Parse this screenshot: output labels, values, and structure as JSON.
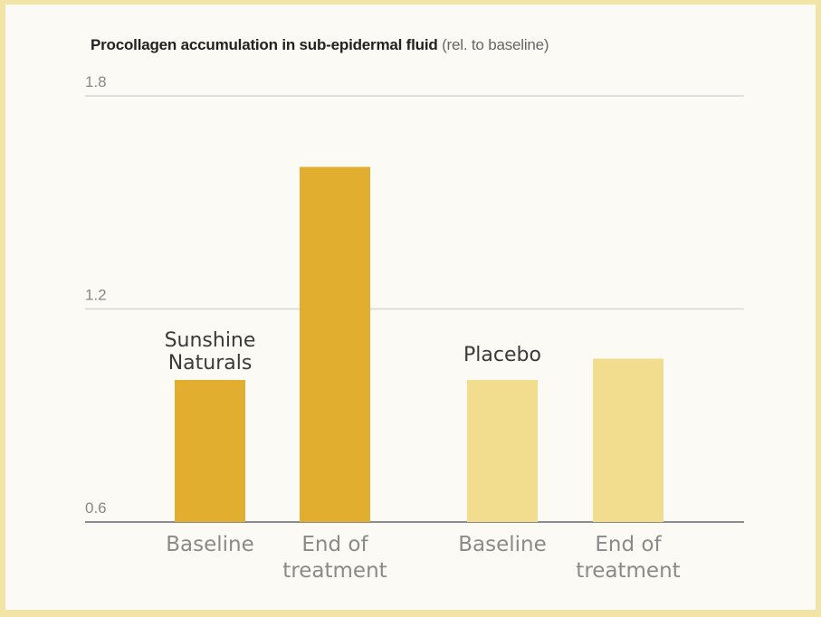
{
  "chart_data": {
    "type": "bar",
    "title": "Procollagen accumulation in sub-epidermal fluid",
    "title_unit": "(rel. to baseline)",
    "xlabel": "",
    "ylabel": "",
    "ylim": [
      0.6,
      1.8
    ],
    "yticks": [
      "1.8",
      "1.2",
      "0.6"
    ],
    "grid": true,
    "groups": [
      {
        "name": "Sunshine Naturals",
        "name_lines": [
          "Sunshine",
          "Naturals"
        ],
        "color": "#e2ae30",
        "bars": [
          {
            "category": "Baseline",
            "category_lines": [
              "Baseline"
            ],
            "value": 1.0
          },
          {
            "category": "End of treatment",
            "category_lines": [
              "End of",
              "treatment"
            ],
            "value": 1.6
          }
        ]
      },
      {
        "name": "Placebo",
        "name_lines": [
          "Placebo"
        ],
        "color": "#f2dc8e",
        "bars": [
          {
            "category": "Baseline",
            "category_lines": [
              "Baseline"
            ],
            "value": 1.0
          },
          {
            "category": "End of treatment",
            "category_lines": [
              "End of",
              "treatment"
            ],
            "value": 1.06
          }
        ]
      }
    ]
  }
}
